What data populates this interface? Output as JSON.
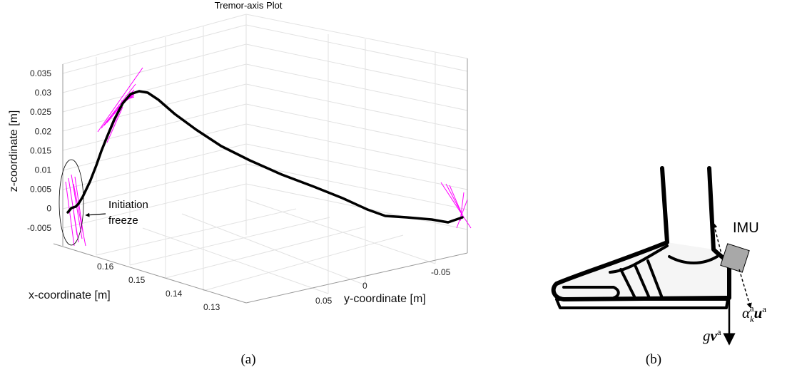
{
  "panel_a": {
    "title": "Tremor-axis Plot",
    "z_axis": {
      "label": "z-coordinate [m]",
      "ticks": [
        "0.035",
        "0.03",
        "0.025",
        "0.02",
        "0.015",
        "0.01",
        "0.005",
        "0",
        "-0.005"
      ]
    },
    "x_axis": {
      "label": "x-coordinate [m]",
      "ticks": [
        "0.16",
        "0.15",
        "0.14",
        "0.13"
      ]
    },
    "y_axis": {
      "label": "y-coordinate [m]",
      "ticks": [
        "0.05",
        "0",
        "-0.05"
      ]
    },
    "annotation": [
      "Initiation",
      "freeze"
    ],
    "caption": "(a)"
  },
  "panel_b": {
    "imu_label": "IMU",
    "gravity_label": {
      "scalar": "g",
      "vector": "v",
      "superscript": "a"
    },
    "accel_label": {
      "scalar": "α",
      "subscript": "k",
      "superscript": "a",
      "vector": "u",
      "vector_superscript": "a"
    },
    "caption": "(b)"
  }
}
